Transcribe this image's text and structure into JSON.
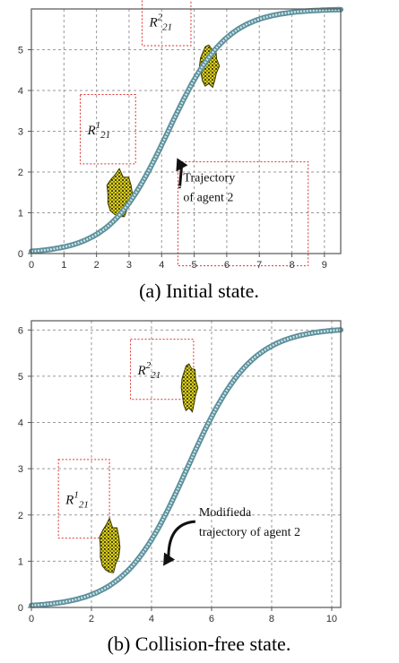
{
  "panels": [
    {
      "id": "a",
      "caption": "(a) Initial state.",
      "x_ticks": [
        "0",
        "1",
        "2",
        "3",
        "4",
        "5",
        "6",
        "7",
        "8",
        "9"
      ],
      "y_ticks": [
        "0",
        "1",
        "2",
        "3",
        "4",
        "5"
      ],
      "xlim": [
        0,
        9.5
      ],
      "ylim": [
        0,
        6
      ],
      "regions": [
        {
          "id": "R1",
          "label": {
            "base": "R",
            "sup": "1",
            "sub": "21"
          },
          "x": [
            1.5,
            3.2
          ],
          "y": [
            2.2,
            3.9
          ]
        },
        {
          "id": "R2",
          "label": {
            "base": "R",
            "sup": "2",
            "sub": "21"
          },
          "x": [
            3.4,
            4.9
          ],
          "y": [
            5.1,
            6.3
          ]
        }
      ],
      "obstacles": [
        {
          "id": "obstacle-1",
          "center": [
            2.7,
            1.45
          ],
          "size": [
            0.75,
            1.1
          ]
        },
        {
          "id": "obstacle-2",
          "center": [
            5.45,
            4.6
          ],
          "size": [
            0.55,
            1.0
          ]
        }
      ],
      "trajectory": {
        "type": "logistic",
        "x0": 4.2,
        "k": 1.12,
        "ymax": 6.0,
        "x_range": [
          0,
          9.5
        ]
      },
      "annotation": {
        "lines": [
          "Trajectory",
          "of  agent  2"
        ],
        "box": {
          "x": [
            4.5,
            8.5
          ],
          "y": [
            -0.3,
            2.25
          ]
        },
        "arrow_to": [
          4.5,
          2.3
        ]
      }
    },
    {
      "id": "b",
      "caption": "(b) Collision-free state.",
      "x_ticks": [
        "0",
        "2",
        "4",
        "6",
        "8",
        "10"
      ],
      "y_ticks": [
        "0",
        "1",
        "2",
        "3",
        "4",
        "5",
        "6"
      ],
      "xlim": [
        0,
        10.3
      ],
      "ylim": [
        0,
        6.2
      ],
      "regions": [
        {
          "id": "R1",
          "label": {
            "base": "R",
            "sup": "1",
            "sub": "21"
          },
          "x": [
            0.9,
            2.6
          ],
          "y": [
            1.5,
            3.2
          ]
        },
        {
          "id": "R2",
          "label": {
            "base": "R",
            "sup": "2",
            "sub": "21"
          },
          "x": [
            3.3,
            5.4
          ],
          "y": [
            4.5,
            5.8
          ]
        }
      ],
      "obstacles": [
        {
          "id": "obstacle-1",
          "center": [
            2.6,
            1.3
          ],
          "size": [
            0.65,
            1.1
          ]
        },
        {
          "id": "obstacle-2",
          "center": [
            5.25,
            4.75
          ],
          "size": [
            0.5,
            1.0
          ]
        }
      ],
      "trajectory": {
        "type": "logistic",
        "x0": 5.2,
        "k": 0.95,
        "ymax": 6.05,
        "x_range": [
          0,
          10.3
        ]
      },
      "annotation": {
        "lines": [
          "Modifieda",
          "trajectory  of  agent  2"
        ],
        "box": {
          "x": [
            5.4,
            11.2
          ],
          "y": [
            0.05,
            2.4
          ]
        },
        "arrow_to": [
          4.45,
          1.15
        ]
      }
    }
  ]
}
